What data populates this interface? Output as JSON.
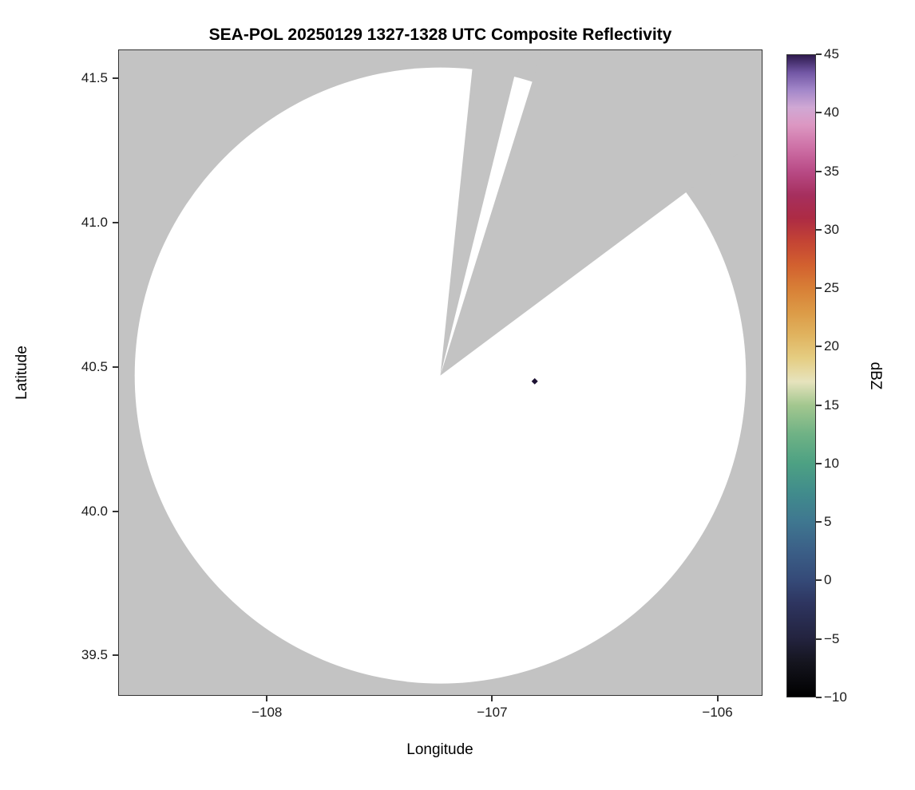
{
  "figure": {
    "background_color": "#ffffff"
  },
  "chart_data": {
    "type": "heatmap",
    "title": "SEA-POL 20250129 1327-1328 UTC Composite Reflectivity",
    "xlabel": "Longitude",
    "ylabel": "Latitude",
    "xlim": [
      -108.66,
      -105.8
    ],
    "ylim": [
      39.36,
      41.6
    ],
    "x_ticks": [
      -108,
      -107,
      -106
    ],
    "x_tick_labels": [
      "−108",
      "−107",
      "−106"
    ],
    "y_ticks": [
      39.5,
      40.0,
      40.5,
      41.0,
      41.5
    ],
    "y_tick_labels": [
      "39.5",
      "40.0",
      "40.5",
      "41.0",
      "41.5"
    ],
    "grid": false,
    "plot_bg_color": "#c3c3c3",
    "scanned_region_color": "#ffffff",
    "radar_coverage": {
      "center_lon": -107.23,
      "center_lat": 40.47,
      "radius_lon_deg": 1.36,
      "radius_lat_deg": 1.07,
      "blocked_sector_azimuths_deg": [
        [
          6,
          14
        ],
        [
          17.5,
          53.5
        ]
      ]
    },
    "echoes": [
      {
        "lon": -106.81,
        "lat": 40.45,
        "value_dbz": 44,
        "color": "#1d1233"
      }
    ],
    "colorbar": {
      "label": "dBZ",
      "min": -10,
      "max": 45,
      "ticks": [
        45,
        40,
        35,
        30,
        25,
        20,
        15,
        10,
        5,
        0,
        -5,
        -10
      ],
      "tick_labels": [
        "45",
        "40",
        "35",
        "30",
        "25",
        "20",
        "15",
        "10",
        "5",
        "0",
        "−5",
        "−10"
      ],
      "gradient_stops": [
        {
          "value": -10,
          "color": "#000000"
        },
        {
          "value": -7,
          "color": "#15151f"
        },
        {
          "value": -5,
          "color": "#23233f"
        },
        {
          "value": -2,
          "color": "#2e3560"
        },
        {
          "value": 0,
          "color": "#354a78"
        },
        {
          "value": 2.5,
          "color": "#3b5f87"
        },
        {
          "value": 5,
          "color": "#3f7790"
        },
        {
          "value": 7.5,
          "color": "#418c8c"
        },
        {
          "value": 10,
          "color": "#4da183"
        },
        {
          "value": 12.5,
          "color": "#6fb285"
        },
        {
          "value": 15,
          "color": "#a3c78f"
        },
        {
          "value": 17,
          "color": "#e6e3bd"
        },
        {
          "value": 19,
          "color": "#e5cd82"
        },
        {
          "value": 21,
          "color": "#e0b35f"
        },
        {
          "value": 23,
          "color": "#dc9a46"
        },
        {
          "value": 25,
          "color": "#d87f36"
        },
        {
          "value": 27,
          "color": "#d2602f"
        },
        {
          "value": 29,
          "color": "#c44434"
        },
        {
          "value": 31,
          "color": "#ad2b44"
        },
        {
          "value": 33,
          "color": "#a62f5e"
        },
        {
          "value": 35,
          "color": "#b84a85"
        },
        {
          "value": 37,
          "color": "#cd6fa5"
        },
        {
          "value": 39,
          "color": "#dc97c2"
        },
        {
          "value": 40.5,
          "color": "#d0a8d4"
        },
        {
          "value": 42,
          "color": "#a387c9"
        },
        {
          "value": 43.5,
          "color": "#7257a5"
        },
        {
          "value": 45,
          "color": "#2e1a4e"
        }
      ]
    }
  }
}
